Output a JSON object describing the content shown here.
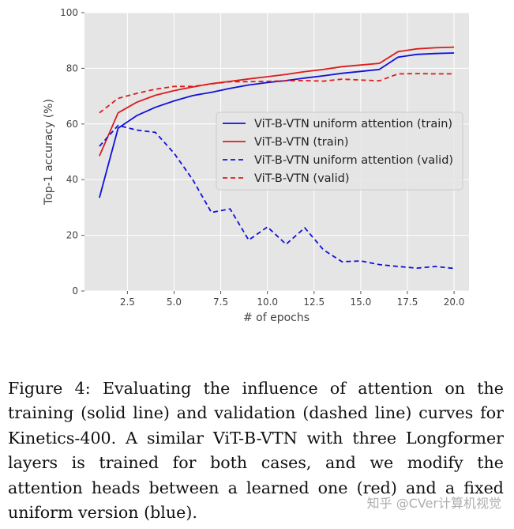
{
  "chart_data": {
    "type": "line",
    "title": "",
    "xlabel": "# of epochs",
    "ylabel": "Top-1 accuracy (%)",
    "xlim": [
      0.2,
      20.8
    ],
    "ylim": [
      0,
      100
    ],
    "xticks": [
      2.5,
      5.0,
      7.5,
      10.0,
      12.5,
      15.0,
      17.5,
      20.0
    ],
    "xtick_labels": [
      "2.5",
      "5.0",
      "7.5",
      "10.0",
      "12.5",
      "15.0",
      "17.5",
      "20.0"
    ],
    "yticks": [
      0,
      20,
      40,
      60,
      80,
      100
    ],
    "ytick_labels": [
      "0",
      "20",
      "40",
      "60",
      "80",
      "100"
    ],
    "grid": true,
    "legend_position": "center-right",
    "x": [
      1,
      2,
      3,
      4,
      5,
      6,
      7,
      8,
      9,
      10,
      11,
      12,
      13,
      14,
      15,
      16,
      17,
      18,
      19,
      20
    ],
    "series": [
      {
        "name": "ViT-B-VTN uniform attention (train)",
        "color": "#1010dd",
        "style": "solid",
        "values": [
          33.5,
          58.5,
          63,
          66,
          68.3,
          70.2,
          71.4,
          72.8,
          74,
          74.9,
          75.6,
          76.5,
          77.3,
          78.2,
          78.9,
          79.6,
          84,
          85,
          85.3,
          85.5
        ]
      },
      {
        "name": "ViT-B-VTN (train)",
        "color": "#dd1c1c",
        "style": "solid",
        "values": [
          48.5,
          64,
          67.8,
          70.3,
          72,
          73.3,
          74.5,
          75.3,
          76.2,
          77,
          77.8,
          78.8,
          79.6,
          80.6,
          81.2,
          81.8,
          86,
          87,
          87.4,
          87.6
        ]
      },
      {
        "name": "ViT-B-VTN uniform attention (valid)",
        "color": "#1010dd",
        "style": "dashed",
        "values": [
          52,
          59.5,
          57.8,
          57,
          49.5,
          40,
          28.2,
          29.5,
          18.3,
          23,
          16.8,
          22.7,
          14.8,
          10.5,
          10.8,
          9.5,
          8.8,
          8.2,
          8.8,
          8.1
        ]
      },
      {
        "name": "ViT-B-VTN (valid)",
        "color": "#dd1c1c",
        "style": "dashed",
        "values": [
          64,
          69.2,
          71,
          72.5,
          73.5,
          73.5,
          74.4,
          75.2,
          75.2,
          75.3,
          75.5,
          75.6,
          75.4,
          76.1,
          75.8,
          75.5,
          78,
          78.1,
          78,
          78
        ]
      }
    ]
  },
  "caption": "Figure 4: Evaluating the influence of attention on the training (solid line) and validation (dashed line) curves for Kinetics-400. A similar ViT-B-VTN with three Longformer layers is trained for both cases, and we modify the attention heads between a learned one (red) and a fixed uniform version (blue).",
  "watermark": "知乎 @CVer计算机视觉",
  "colors": {
    "plot_bg": "#e5e5e5",
    "grid": "#ffffff",
    "blue": "#1010dd",
    "red": "#dd1c1c"
  }
}
